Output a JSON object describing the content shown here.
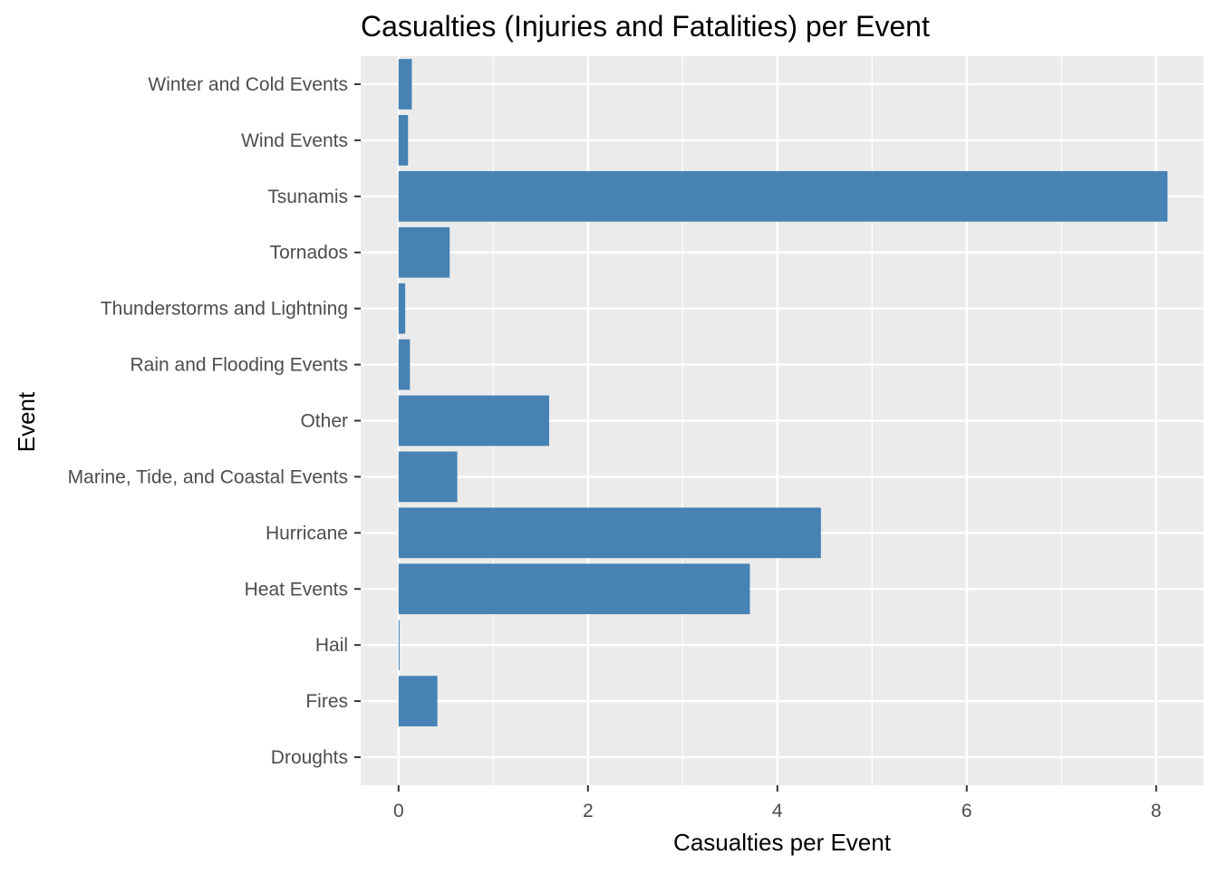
{
  "chart_data": {
    "type": "bar",
    "orientation": "horizontal",
    "title": "Casualties (Injuries and Fatalities) per Event",
    "xlabel": "Casualties per Event",
    "ylabel": "Event",
    "categories": [
      "Droughts",
      "Fires",
      "Hail",
      "Heat Events",
      "Hurricane",
      "Marine, Tide, and Coastal Events",
      "Other",
      "Rain and Flooding Events",
      "Thunderstorms and Lightning",
      "Tornados",
      "Tsunamis",
      "Wind Events",
      "Winter and Cold Events"
    ],
    "values": [
      0.0,
      0.41,
      0.01,
      3.71,
      4.46,
      0.62,
      1.59,
      0.12,
      0.07,
      0.54,
      8.12,
      0.1,
      0.14
    ],
    "xlim": [
      -0.4,
      8.5
    ],
    "xticks": [
      0,
      2,
      4,
      6,
      8
    ],
    "xtick_labels": [
      "0",
      "2",
      "4",
      "6",
      "8"
    ],
    "grid": true,
    "legend": "none",
    "colors": {
      "bar": "#4682b4",
      "panel": "#ebebeb",
      "grid": "#ffffff",
      "tick_text": "#4d4d4d",
      "tick_mark": "#333333"
    }
  }
}
